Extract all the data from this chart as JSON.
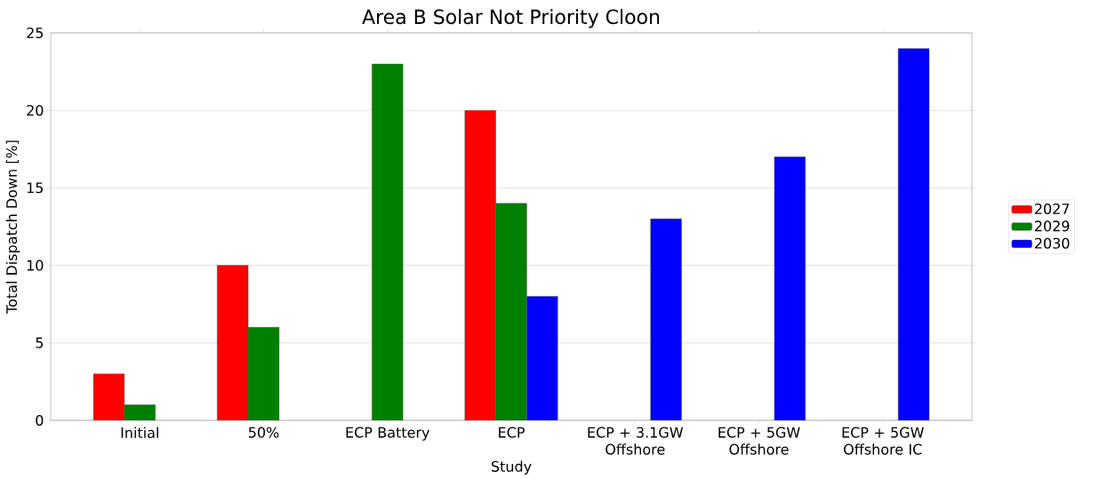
{
  "chart_data": {
    "type": "bar",
    "title": "Area B Solar Not Priority Cloon",
    "xlabel": "Study",
    "ylabel": "Total Dispatch Down [%]",
    "categories": [
      "Initial",
      "50%",
      "ECP Battery",
      "ECP",
      "ECP + 3.1GW Offshore",
      "ECP + 5GW Offshore",
      "ECP + 5GW Offshore IC"
    ],
    "series": [
      {
        "name": "2027",
        "color": "#ff0000",
        "values": [
          3,
          10,
          null,
          20,
          null,
          null,
          null
        ]
      },
      {
        "name": "2029",
        "color": "#008000",
        "values": [
          1,
          6,
          23,
          14,
          null,
          null,
          null
        ]
      },
      {
        "name": "2030",
        "color": "#0000ff",
        "values": [
          null,
          null,
          null,
          8,
          13,
          17,
          24
        ]
      }
    ],
    "ylim": [
      0,
      25
    ],
    "yticks": [
      0,
      5,
      10,
      15,
      20,
      25
    ],
    "grid": "y",
    "legend": "right"
  }
}
